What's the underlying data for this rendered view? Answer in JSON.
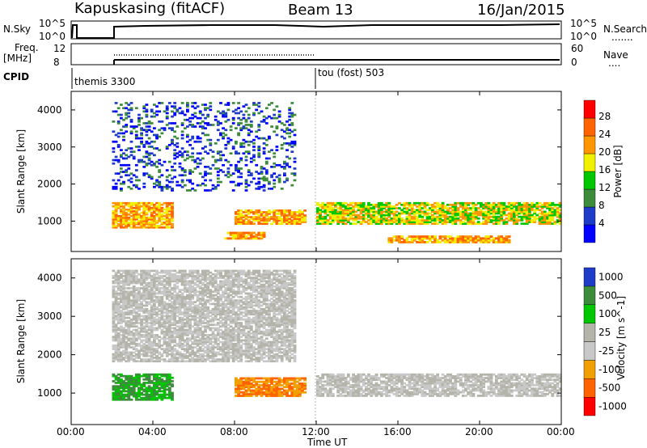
{
  "header": {
    "station": "Kapuskasing (fitACF)",
    "beam": "Beam 13",
    "date": "16/Jan/2015"
  },
  "panels": {
    "nsky": {
      "left_label": "N.Sky",
      "left_ticks": [
        "10^5",
        "10^0"
      ],
      "right_ticks": [
        "10^5",
        "10^0"
      ],
      "right_label": "N.Search",
      "right_legend": "......."
    },
    "freq": {
      "left_label_line1": "Freq.",
      "left_label_line2": "[MHz]",
      "left_ticks": [
        "12",
        "8"
      ],
      "right_ticks": [
        "60",
        "0"
      ],
      "right_label": "Nave",
      "right_legend": "...."
    },
    "cpid": {
      "label": "CPID",
      "segments": [
        "themis 3300",
        "tou (fost) 503"
      ]
    }
  },
  "power_panel": {
    "ylabel": "Slant Range [km]",
    "yticks": [
      "4000",
      "3000",
      "2000",
      "1000"
    ],
    "colorbar_label": "Power [dB]",
    "colorbar_ticks": [
      "28",
      "24",
      "20",
      "16",
      "12",
      "8",
      "4"
    ],
    "colors": [
      "#0000ff",
      "#1e3cc8",
      "#3c8c3c",
      "#00c800",
      "#f0f000",
      "#ff9600",
      "#ff6400",
      "#ff0000"
    ]
  },
  "velocity_panel": {
    "ylabel": "Slant Range [km]",
    "yticks": [
      "4000",
      "3000",
      "2000",
      "1000"
    ],
    "colorbar_label": "Velocity [m s^-1]",
    "colorbar_ticks": [
      "1000",
      "500",
      "100",
      "25",
      "-25",
      "-100",
      "-500",
      "-1000"
    ],
    "colors": [
      "#1e3cc8",
      "#3c8c3c",
      "#00c800",
      "#b4b4aa",
      "#c8c8c8",
      "#f0a000",
      "#ff6400",
      "#ff0000"
    ]
  },
  "xaxis": {
    "label": "Time UT",
    "ticks": [
      "00:00",
      "04:00",
      "08:00",
      "12:00",
      "16:00",
      "20:00",
      "00:00"
    ]
  },
  "chart_data": {
    "type": "heatmap",
    "x_range_hours": [
      0,
      24
    ],
    "y_range_km": [
      180,
      4500
    ],
    "power_regions": [
      {
        "t": [
          2.0,
          5.0
        ],
        "r": [
          800,
          1500
        ],
        "level": "strong"
      },
      {
        "t": [
          8.0,
          11.5
        ],
        "r": [
          900,
          1300
        ],
        "level": "strong"
      },
      {
        "t": [
          12.0,
          24.0
        ],
        "r": [
          900,
          1500
        ],
        "level": "moderate"
      },
      {
        "t": [
          7.5,
          9.5
        ],
        "r": [
          500,
          700
        ],
        "level": "strong"
      },
      {
        "t": [
          15.5,
          21.5
        ],
        "r": [
          400,
          600
        ],
        "level": "strong"
      },
      {
        "t": [
          2.0,
          11.0
        ],
        "r": [
          1800,
          4200
        ],
        "level": "weak"
      }
    ],
    "velocity_regions": [
      {
        "t": [
          2.0,
          5.0
        ],
        "r": [
          800,
          1500
        ],
        "velocity": "positive"
      },
      {
        "t": [
          8.0,
          11.5
        ],
        "r": [
          900,
          1400
        ],
        "velocity": "negative"
      },
      {
        "t": [
          12.0,
          24.0
        ],
        "r": [
          900,
          1500
        ],
        "velocity": "near-zero"
      },
      {
        "t": [
          2.0,
          11.0
        ],
        "r": [
          1800,
          4200
        ],
        "velocity": "near-zero"
      }
    ],
    "cpid_change_time": "12:00"
  }
}
